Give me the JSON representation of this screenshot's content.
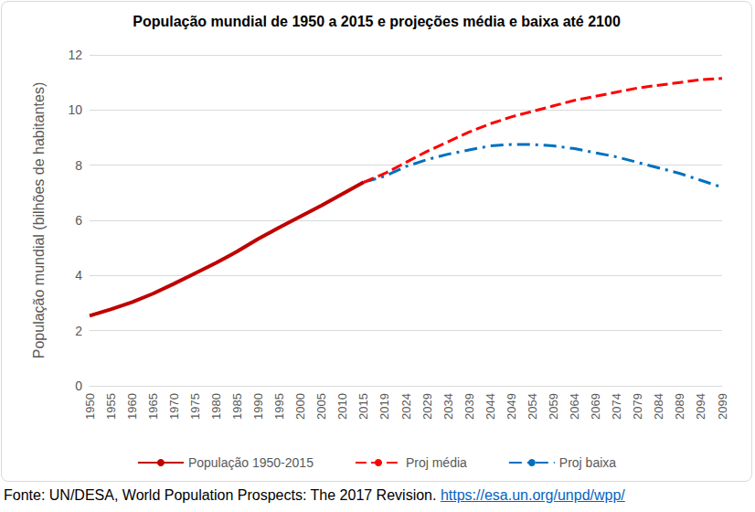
{
  "chart_data": {
    "type": "line",
    "title": "População mundial de 1950 a 2015 e projeções média e baixa até 2100",
    "y_label": "População mundial (bilhões de habitantes)",
    "categories": [
      "1950",
      "1955",
      "1960",
      "1965",
      "1970",
      "1975",
      "1980",
      "1985",
      "1990",
      "1995",
      "2000",
      "2005",
      "2010",
      "2015",
      "2019",
      "2024",
      "2029",
      "2034",
      "2039",
      "2044",
      "2049",
      "2054",
      "2059",
      "2064",
      "2069",
      "2074",
      "2079",
      "2084",
      "2089",
      "2094",
      "2099"
    ],
    "series": [
      {
        "name": "População 1950-2015",
        "color": "#c00000",
        "line_style": "solid",
        "values": [
          2.54,
          2.77,
          3.03,
          3.34,
          3.7,
          4.08,
          4.46,
          4.87,
          5.33,
          5.74,
          6.14,
          6.54,
          6.96,
          7.38,
          null,
          null,
          null,
          null,
          null,
          null,
          null,
          null,
          null,
          null,
          null,
          null,
          null,
          null,
          null,
          null,
          null
        ]
      },
      {
        "name": "Proj média",
        "color": "#ff0000",
        "line_style": "dashed",
        "values": [
          null,
          null,
          null,
          null,
          null,
          null,
          null,
          null,
          null,
          null,
          null,
          null,
          null,
          7.38,
          7.7,
          8.1,
          8.5,
          8.85,
          9.2,
          9.5,
          9.75,
          9.95,
          10.15,
          10.35,
          10.5,
          10.65,
          10.8,
          10.9,
          11.0,
          11.1,
          11.15
        ]
      },
      {
        "name": "Proj baixa",
        "color": "#0070c0",
        "line_style": "dashdot",
        "values": [
          null,
          null,
          null,
          null,
          null,
          null,
          null,
          null,
          null,
          null,
          null,
          null,
          null,
          7.38,
          7.6,
          7.95,
          8.2,
          8.4,
          8.55,
          8.7,
          8.75,
          8.75,
          8.7,
          8.6,
          8.45,
          8.3,
          8.1,
          7.9,
          7.7,
          7.45,
          7.2
        ]
      }
    ],
    "ylim": [
      0,
      12
    ],
    "yticks": [
      0,
      2,
      4,
      6,
      8,
      10,
      12
    ],
    "grid": true,
    "legend": "bottom",
    "annotations": [
      "Fonte: UN/DESA, World Population Prospects: The 2017 Revision.",
      "https://esa.un.org/unpd/wpp/"
    ]
  }
}
